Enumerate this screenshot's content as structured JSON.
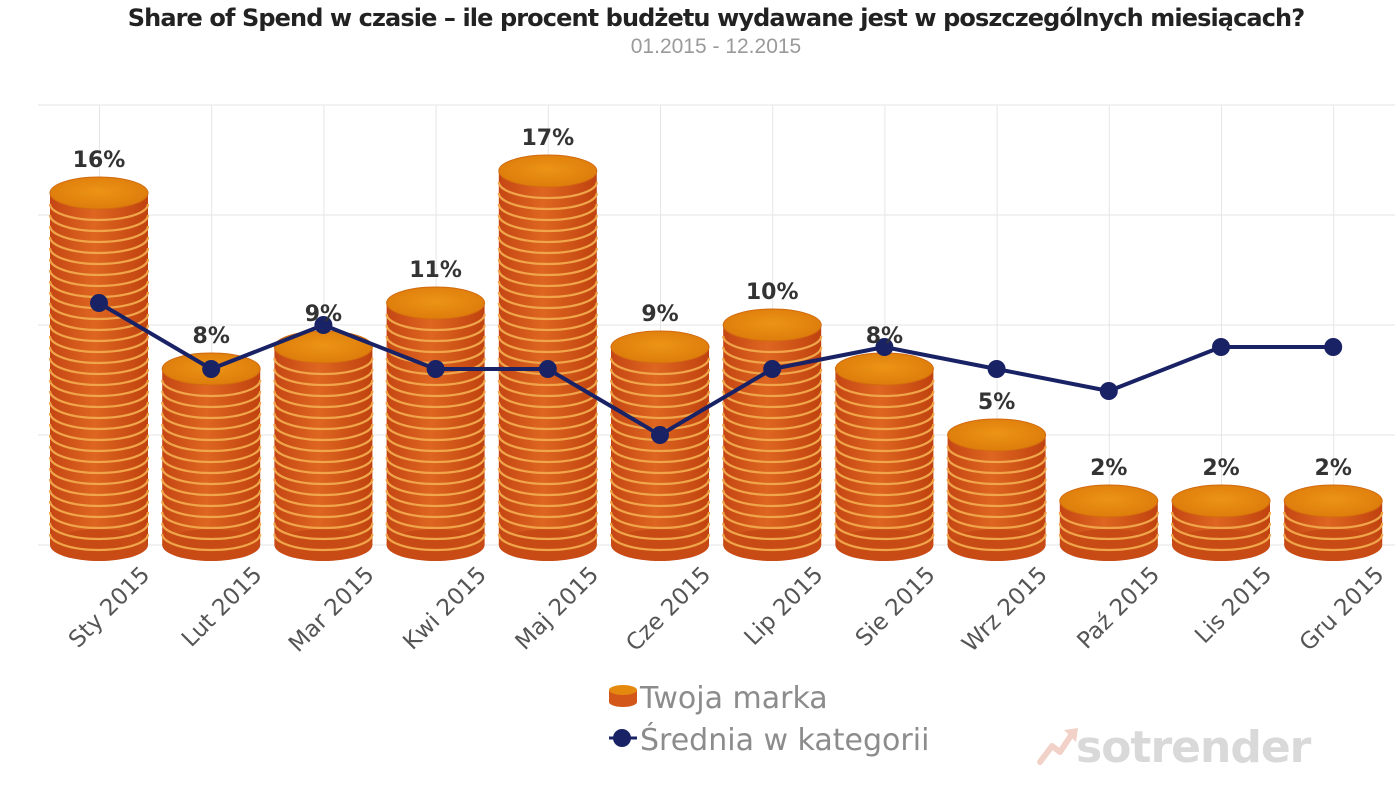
{
  "header": {
    "title": "Share of Spend w czasie – ile procent budżetu wydawane jest w poszczególnych miesiącach?",
    "subtitle": "01.2015 - 12.2015"
  },
  "chart_data": {
    "type": "bar",
    "categories": [
      "Sty 2015",
      "Lut 2015",
      "Mar 2015",
      "Kwi 2015",
      "Maj 2015",
      "Cze 2015",
      "Lip 2015",
      "Sie 2015",
      "Wrz 2015",
      "Paź 2015",
      "Lis 2015",
      "Gru 2015"
    ],
    "series": [
      {
        "name": "Twoja marka",
        "type": "bar",
        "values": [
          16,
          8,
          9,
          11,
          17,
          9,
          10,
          8,
          5,
          2,
          2,
          2
        ],
        "data_labels": [
          "16%",
          "8%",
          "9%",
          "11%",
          "17%",
          "9%",
          "10%",
          "8%",
          "5%",
          "2%",
          "2%",
          "2%"
        ],
        "color": "#e5880f"
      },
      {
        "name": "Średnia w kategorii",
        "type": "line",
        "values": [
          11,
          8,
          10,
          8,
          8,
          5,
          8,
          9,
          8,
          7,
          9,
          9
        ],
        "color": "#1a2266"
      }
    ],
    "ylim": [
      0,
      20
    ],
    "grid": true,
    "legend": "bottom-center",
    "xlabel": "",
    "ylabel": ""
  },
  "legend": {
    "bar_label": "Twoja marka",
    "line_label": "Średnia w kategorii"
  },
  "brand": {
    "name": "sotrender",
    "icon": "trend-arrow-icon"
  },
  "colors": {
    "coin_top": "#e5880f",
    "coin_side": "#d4571a",
    "coin_rim": "#f0a54a",
    "line": "#1a2266",
    "grid": "#e6e6e6",
    "brand": "#d9d9d9"
  }
}
